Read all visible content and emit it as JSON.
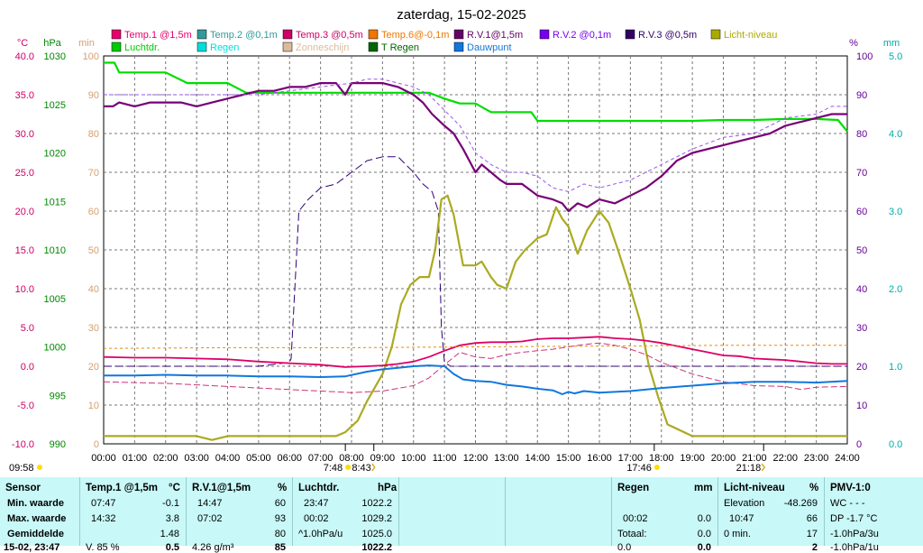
{
  "chart_data": {
    "type": "line",
    "title": "zaterdag, 15-02-2025",
    "x_ticks": [
      "00:00",
      "01:00",
      "02:00",
      "03:00",
      "04:00",
      "05:00",
      "06:00",
      "07:00",
      "08:00",
      "09:00",
      "10:00",
      "11:00",
      "12:00",
      "13:00",
      "14:00",
      "15:00",
      "16:00",
      "17:00",
      "18:00",
      "19:00",
      "20:00",
      "21:00",
      "22:00",
      "23:00",
      "24:00"
    ],
    "axes": {
      "temp": {
        "label": "°C",
        "color": "#cc0066",
        "min": -10,
        "max": 40,
        "ticks": [
          "40.0",
          "35.0",
          "30.0",
          "25.0",
          "20.0",
          "15.0",
          "10.0",
          "5.0",
          "0.0",
          "-5.0",
          "-10.0"
        ]
      },
      "pressure": {
        "label": "hPa",
        "color": "#008800",
        "min": 990,
        "max": 1030,
        "ticks": [
          "1030",
          "1025",
          "1020",
          "1015",
          "1010",
          "1005",
          "1000",
          "995",
          "990"
        ]
      },
      "minutes": {
        "label": "min",
        "color": "#d4a070",
        "min": 0,
        "max": 100,
        "ticks": [
          "100",
          "90",
          "80",
          "70",
          "60",
          "50",
          "40",
          "30",
          "20",
          "10",
          "0"
        ]
      },
      "percent": {
        "label": "%",
        "color": "#660099",
        "min": 0,
        "max": 100,
        "ticks": [
          "100",
          "90",
          "80",
          "70",
          "60",
          "50",
          "40",
          "30",
          "20",
          "10",
          "0"
        ]
      },
      "rain_mm": {
        "label": "mm",
        "color": "#00aaaa",
        "min": 0,
        "max": 5,
        "ticks": [
          "5.0",
          "4.0",
          "3.0",
          "2.0",
          "1.0",
          "0.0"
        ]
      }
    },
    "legend": [
      {
        "name": "Temp.1 @1,5m",
        "color": "#e8006a"
      },
      {
        "name": "Temp.2 @0,1m",
        "color": "#339999"
      },
      {
        "name": "Temp.3 @0,5m",
        "color": "#cc0066"
      },
      {
        "name": "Temp.6@-0,1m",
        "color": "#ee7700"
      },
      {
        "name": "R.V.1@1,5m",
        "color": "#660066"
      },
      {
        "name": "R.V.2 @0,1m",
        "color": "#7700ee"
      },
      {
        "name": "R.V.3 @0,5m",
        "color": "#330066"
      },
      {
        "name": "Licht-niveau",
        "color": "#aaaa00"
      },
      {
        "name": "Luchtdr.",
        "color": "#00cc00"
      },
      {
        "name": "Regen",
        "color": "#00dddd"
      },
      {
        "name": "Zonneschijn",
        "color": "#ddbb99"
      },
      {
        "name": "T Regen",
        "color": "#006600"
      },
      {
        "name": "Dauwpunt",
        "color": "#1177dd"
      }
    ],
    "series": [
      {
        "name": "Luchtdr.",
        "axis": "pressure",
        "color": "#00dd00",
        "width": 2.2,
        "step": true,
        "x": [
          0,
          0.35,
          0.5,
          1,
          2,
          2.7,
          3,
          4,
          4.6,
          5,
          6,
          7,
          8,
          9,
          10,
          10.5,
          11,
          11.5,
          12,
          12.5,
          13,
          13.8,
          14,
          15,
          16,
          17,
          18,
          19,
          20,
          21,
          22,
          23,
          23.7,
          24
        ],
        "y": [
          1029.3,
          1029.3,
          1028.3,
          1028.3,
          1028.3,
          1027.2,
          1027.2,
          1027.2,
          1026.2,
          1026.2,
          1026.2,
          1026.2,
          1026.2,
          1026.2,
          1026.2,
          1026.2,
          1025.6,
          1025.1,
          1025.1,
          1024.2,
          1024.2,
          1024.2,
          1023.3,
          1023.3,
          1023.3,
          1023.3,
          1023.3,
          1023.3,
          1023.4,
          1023.4,
          1023.5,
          1023.5,
          1023.4,
          1022.2
        ]
      },
      {
        "name": "R.V.1@1,5m",
        "axis": "percent",
        "color": "#770077",
        "width": 2.2,
        "x": [
          0,
          0.3,
          0.5,
          1,
          1.5,
          2,
          2.5,
          3,
          3.5,
          4,
          4.5,
          5,
          5.5,
          6,
          6.5,
          7,
          7.5,
          7.8,
          8,
          8.5,
          9,
          9.5,
          10,
          10.3,
          10.6,
          11,
          11.3,
          11.6,
          12,
          12.2,
          12.5,
          12.8,
          13,
          13.5,
          14,
          14.5,
          14.8,
          15,
          15.3,
          15.6,
          16,
          16.5,
          17,
          17.5,
          18,
          18.5,
          19,
          19.5,
          20,
          20.5,
          21,
          21.5,
          22,
          22.5,
          23,
          23.5,
          24
        ],
        "y": [
          87,
          87,
          88,
          87,
          88,
          88,
          88,
          87,
          88,
          89,
          90,
          91,
          91,
          92,
          92,
          93,
          93,
          90,
          93,
          93,
          93,
          92,
          90,
          88,
          85,
          82,
          80,
          76,
          70,
          72,
          70,
          68,
          67,
          67,
          64,
          63,
          62,
          60,
          62,
          61,
          63,
          62,
          64,
          66,
          69,
          73,
          75,
          76,
          77,
          78,
          79,
          80,
          82,
          83,
          84,
          85,
          85
        ]
      },
      {
        "name": "R.V.2 @0,1m",
        "axis": "percent",
        "color": "#9955ee",
        "width": 1,
        "dash": "4,3",
        "x": [
          0,
          1,
          2,
          3,
          4,
          5,
          6,
          7,
          8,
          8.5,
          9,
          10,
          10.5,
          11,
          11.5,
          12,
          12.5,
          13,
          13.5,
          14,
          14.5,
          15,
          15.5,
          16,
          17,
          18,
          19,
          20,
          21,
          22,
          23,
          23.5,
          24
        ],
        "y": [
          90,
          90,
          90,
          90,
          90,
          90,
          91,
          92,
          93,
          94,
          94,
          92,
          90,
          86,
          82,
          75,
          72,
          70,
          70,
          69,
          66,
          65,
          67,
          66,
          68,
          72,
          76,
          79,
          80,
          84,
          85,
          87,
          87
        ]
      },
      {
        "name": "R.V.3 @0,5m",
        "axis": "percent",
        "color": "#330077",
        "width": 1,
        "dash": "9,4",
        "x": [
          0,
          4,
          5,
          6,
          6.05,
          6.3,
          6.6,
          7,
          7.5,
          8,
          8.5,
          9,
          9.5,
          10,
          10.3,
          10.6,
          10.8,
          10.9,
          11,
          11.2,
          12,
          16,
          20,
          24
        ],
        "y": [
          20,
          20,
          20,
          21,
          22,
          60,
          63,
          66,
          67,
          70,
          73,
          74,
          74,
          70,
          67,
          65,
          60,
          30,
          21,
          20,
          20,
          20,
          20,
          20
        ]
      },
      {
        "name": "Licht-niveau",
        "axis": "minutes",
        "color": "#aaaa22",
        "width": 2.2,
        "x": [
          0,
          3,
          3.5,
          4,
          5,
          6,
          7,
          7.5,
          7.8,
          8.2,
          8.5,
          9,
          9.3,
          9.6,
          9.9,
          10.2,
          10.5,
          10.7,
          10.9,
          11.1,
          11.3,
          11.6,
          12,
          12.2,
          12.5,
          12.7,
          13,
          13.3,
          13.6,
          14,
          14.3,
          14.6,
          14.8,
          15,
          15.3,
          15.6,
          16,
          16.3,
          16.6,
          17,
          17.3,
          17.6,
          17.9,
          18.2,
          19,
          20,
          24
        ],
        "y": [
          2,
          2,
          1,
          2,
          2,
          2,
          2,
          2,
          3,
          6,
          11,
          18,
          25,
          36,
          41,
          43,
          43,
          50,
          63,
          64,
          59,
          46,
          46,
          47,
          43,
          41,
          40,
          47,
          50,
          53,
          54,
          61,
          58,
          56,
          49,
          55,
          60,
          57,
          50,
          40,
          32,
          20,
          12,
          5,
          2,
          2,
          2
        ]
      },
      {
        "name": "Temp.1 @1,5m",
        "axis": "temp",
        "color": "#dd0066",
        "width": 1.8,
        "x": [
          0,
          1,
          2,
          3,
          4,
          5,
          6,
          7,
          7.8,
          8.5,
          9,
          9.5,
          10,
          10.5,
          11,
          11.5,
          12,
          12.5,
          13,
          13.5,
          14,
          14.5,
          15,
          15.5,
          16,
          16.5,
          17,
          17.5,
          18,
          18.5,
          19,
          19.5,
          20,
          20.5,
          21,
          21.5,
          22,
          22.5,
          23,
          23.5,
          24
        ],
        "y": [
          1.2,
          1.1,
          1.1,
          1.0,
          0.9,
          0.6,
          0.4,
          0.2,
          -0.1,
          0.0,
          0.1,
          0.3,
          0.6,
          1.2,
          2.0,
          2.7,
          3.0,
          3.1,
          3.1,
          3.2,
          3.5,
          3.6,
          3.6,
          3.7,
          3.8,
          3.6,
          3.5,
          3.3,
          3.0,
          2.6,
          2.2,
          1.8,
          1.4,
          1.3,
          1.0,
          0.9,
          0.8,
          0.6,
          0.4,
          0.3,
          0.3
        ]
      },
      {
        "name": "Temp.3 @0,5m",
        "axis": "temp",
        "color": "#cc3377",
        "width": 1,
        "dash": "7,3",
        "x": [
          0,
          1,
          2,
          3,
          4,
          5,
          6,
          7,
          8,
          9,
          10,
          10.5,
          11,
          11.5,
          12,
          12.5,
          13,
          13.5,
          14,
          14.5,
          15,
          15.5,
          16,
          16.5,
          17,
          17.5,
          18,
          19,
          20,
          21,
          22,
          22.5,
          23,
          24
        ],
        "y": [
          -2.0,
          -2.1,
          -2.2,
          -2.4,
          -2.6,
          -2.8,
          -3.0,
          -3.2,
          -3.4,
          -3.2,
          -2.5,
          -1.5,
          0.2,
          1.8,
          1.2,
          1.0,
          1.5,
          1.8,
          2.0,
          2.2,
          2.5,
          2.8,
          3.0,
          2.7,
          2.2,
          1.5,
          0.5,
          -1.0,
          -2.0,
          -2.5,
          -2.6,
          -3.0,
          -2.7,
          -2.6
        ]
      },
      {
        "name": "Temp.6@-0,1m",
        "axis": "temp",
        "color": "#ee8800",
        "width": 1,
        "dash": "3,3",
        "x": [
          0,
          4,
          8,
          12,
          16,
          20,
          24
        ],
        "y": [
          2.3,
          2.4,
          2.4,
          2.5,
          2.6,
          2.7,
          2.7
        ]
      },
      {
        "name": "Dauwpunt",
        "axis": "temp",
        "color": "#1177dd",
        "width": 2,
        "x": [
          0,
          1,
          2,
          3,
          4,
          5,
          6,
          7,
          7.8,
          8.5,
          9,
          9.5,
          10,
          10.5,
          11,
          11.3,
          11.6,
          12,
          12.5,
          13,
          13.5,
          14,
          14.5,
          14.8,
          15,
          15.2,
          15.5,
          16,
          17,
          18,
          19,
          20,
          21,
          22,
          23,
          24
        ],
        "y": [
          -1.2,
          -1.2,
          -1.1,
          -1.2,
          -1.2,
          -1.3,
          -1.3,
          -1.4,
          -1.3,
          -0.7,
          -0.4,
          -0.2,
          0.0,
          0.1,
          0.0,
          -1.0,
          -1.7,
          -1.9,
          -2.0,
          -2.4,
          -2.6,
          -2.9,
          -3.1,
          -3.6,
          -3.3,
          -3.5,
          -3.2,
          -3.4,
          -3.2,
          -2.8,
          -2.5,
          -2.2,
          -2.0,
          -2.0,
          -2.1,
          -1.9
        ]
      }
    ],
    "time_markers": [
      {
        "label": "09:58",
        "x": 0,
        "icon": "sun"
      },
      {
        "label": "7:48",
        "x": 7.8,
        "icon": "sunrise"
      },
      {
        "label": "8:43",
        "x": 8.72,
        "icon": "moon-rise"
      },
      {
        "label": "17:46",
        "x": 17.77,
        "icon": "sunset"
      },
      {
        "label": "21:18",
        "x": 21.3,
        "icon": "moon-set"
      }
    ]
  },
  "stats": {
    "sensor": {
      "header": "Sensor",
      "rows": [
        "Min. waarde",
        "Max. waarde",
        "Gemiddelde",
        "15-02, 23:47"
      ]
    },
    "temp1": {
      "header": "Temp.1 @1,5m",
      "unit": "°C",
      "rows": [
        {
          "t": "07:47",
          "v": "-0.1"
        },
        {
          "t": "14:32",
          "v": "3.8"
        },
        {
          "t": "",
          "v": "1.48"
        },
        {
          "t": "V. 85 %",
          "v": "0.5"
        }
      ]
    },
    "rv1": {
      "header": "R.V.1@1,5m",
      "unit": "%",
      "rows": [
        {
          "t": "14:47",
          "v": "60"
        },
        {
          "t": "07:02",
          "v": "93"
        },
        {
          "t": "",
          "v": "80"
        },
        {
          "t": "4.26 g/m³",
          "v": "85"
        }
      ]
    },
    "luchtdr": {
      "header": "Luchtdr.",
      "unit": "hPa",
      "rows": [
        {
          "t": "23:47",
          "v": "1022.2"
        },
        {
          "t": "00:02",
          "v": "1029.2"
        },
        {
          "t": "^1.0hPa/u",
          "v": "1025.0"
        },
        {
          "t": "",
          "v": "1022.2"
        }
      ]
    },
    "regen": {
      "header": "Regen",
      "unit": "mm",
      "rows": [
        {
          "t": "",
          "v": ""
        },
        {
          "t": "00:02",
          "v": "0.0"
        },
        {
          "t": "Totaal:",
          "v": "0.0"
        },
        {
          "t": "0.0",
          "v": "0.0"
        }
      ]
    },
    "licht": {
      "header": "Licht-niveau",
      "unit": "%",
      "rows": [
        {
          "t": "Elevation",
          "v": "-48.269"
        },
        {
          "t": "10:47",
          "v": "66"
        },
        {
          "t": "0 min.",
          "v": "17"
        },
        {
          "t": "",
          "v": "2"
        }
      ]
    },
    "pmv": {
      "header": "PMV-1:0",
      "rows": [
        "WC - - -",
        "DP -1.7 °C",
        "-1.0hPa/3u",
        "-1.0hPa/1u"
      ]
    }
  }
}
